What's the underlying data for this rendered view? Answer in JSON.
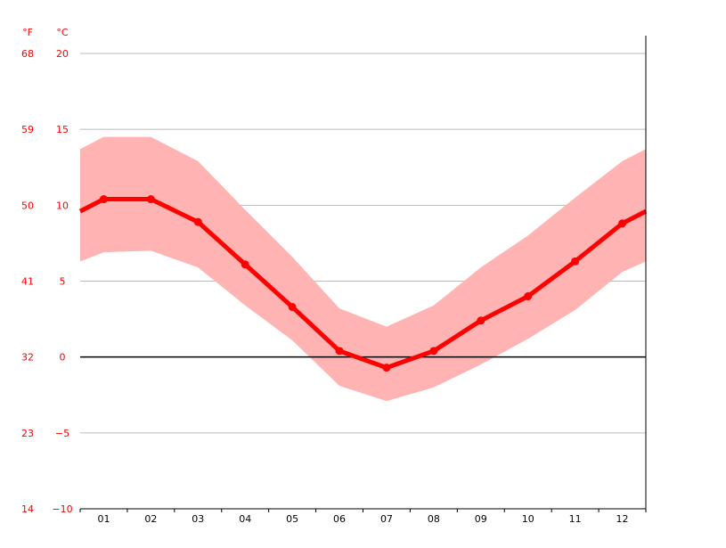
{
  "chart_data": {
    "type": "line",
    "categories": [
      "01",
      "02",
      "03",
      "04",
      "05",
      "06",
      "07",
      "08",
      "09",
      "10",
      "11",
      "12"
    ],
    "unit_left": "°F",
    "unit_right": "°C",
    "yticks_c": [
      "20",
      "15",
      "10",
      "5",
      "0",
      "−5",
      "−10"
    ],
    "yticks_f": [
      "68",
      "59",
      "50",
      "41",
      "32",
      "23",
      "14"
    ],
    "ylim": [
      -10,
      20
    ],
    "grid": true,
    "series": [
      {
        "values": [
          10.4,
          10.4,
          8.9,
          6.1,
          3.3,
          0.4,
          -0.7,
          0.4,
          2.4,
          4.0,
          6.3,
          8.8
        ]
      }
    ],
    "band": {
      "high": [
        14.5,
        14.5,
        12.9,
        9.7,
        6.6,
        3.2,
        2.0,
        3.4,
        5.9,
        8.0,
        10.5,
        12.9
      ],
      "low": [
        6.9,
        7.0,
        5.9,
        3.4,
        1.1,
        -1.9,
        -2.9,
        -2.0,
        -0.5,
        1.2,
        3.1,
        5.6
      ],
      "edge_start": [
        13.7,
        6.3
      ],
      "edge_end": [
        13.7,
        6.3
      ]
    },
    "line_edge_start": 9.6,
    "line_edge_end": 9.6,
    "colors": {
      "line": "#ff0000",
      "band": "#ffb3b3",
      "axis_text": "#ff0000",
      "tick_text": "#000000",
      "grid": "#bbbbbb",
      "zero_line": "#000000"
    }
  }
}
